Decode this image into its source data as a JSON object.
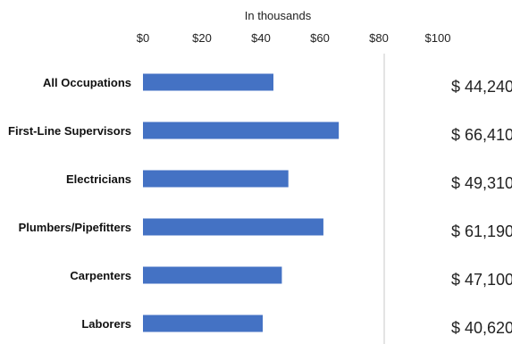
{
  "chart_data": {
    "type": "bar",
    "orientation": "horizontal",
    "subtitle": "In thousands",
    "categories": [
      "All Occupations",
      "First-Line Supervisors",
      "Electricians",
      "Plumbers/Pipefitters",
      "Carpenters",
      "Laborers"
    ],
    "values": [
      44.24,
      66.41,
      49.31,
      61.19,
      47.1,
      40.62
    ],
    "value_labels": [
      "$ 44,240",
      "$ 66,410",
      "$ 49,310",
      "$ 61,190",
      "$ 47,100",
      "$ 40,620"
    ],
    "xlim": [
      0,
      100
    ],
    "x_ticks": [
      0,
      20,
      40,
      60,
      80,
      100
    ],
    "x_tick_labels": [
      "$0",
      "$20",
      "$40",
      "$60",
      "$80",
      "$100"
    ],
    "grid": false,
    "legend": "none",
    "bar_color": "#4472c4"
  }
}
